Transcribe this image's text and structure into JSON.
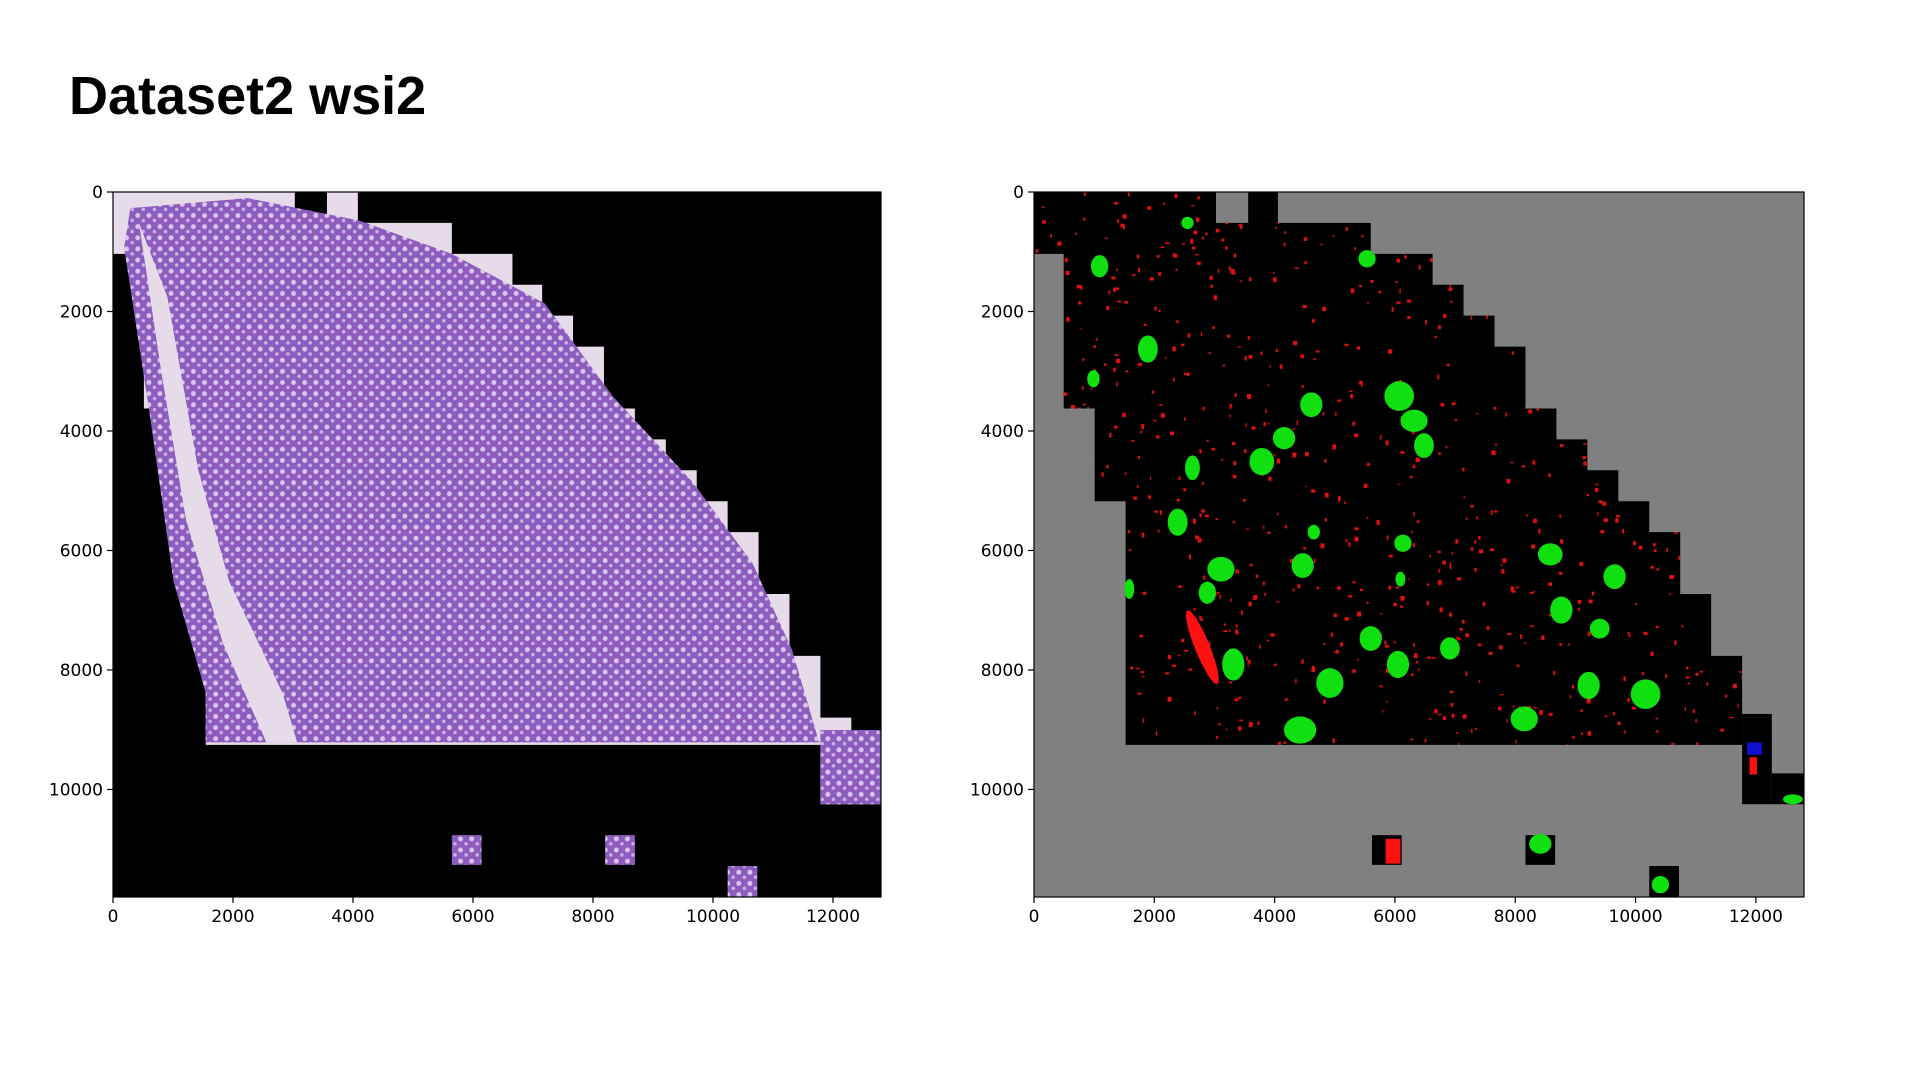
{
  "title": "Dataset2 wsi2",
  "chart_data": [
    {
      "type": "image",
      "xlim": [
        0,
        12800
      ],
      "ylim": [
        11800,
        0
      ],
      "xticks": [
        0,
        2000,
        4000,
        6000,
        8000,
        10000,
        12000
      ],
      "yticks": [
        0,
        2000,
        4000,
        6000,
        8000,
        10000
      ]
    },
    {
      "type": "image",
      "xlim": [
        0,
        12800
      ],
      "ylim": [
        11800,
        0
      ],
      "xticks": [
        0,
        2000,
        4000,
        6000,
        8000,
        10000,
        12000
      ],
      "yticks": [
        0,
        2000,
        4000,
        6000,
        8000,
        10000
      ]
    }
  ]
}
